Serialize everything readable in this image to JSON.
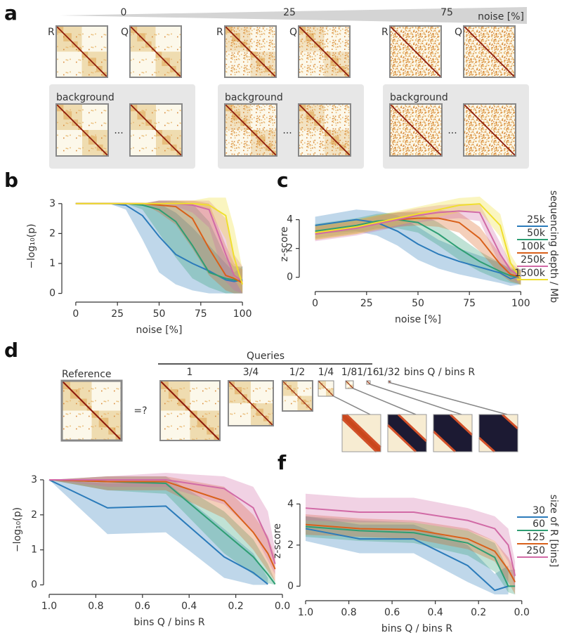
{
  "panel_a": {
    "label": "a",
    "noise_levels": [
      "0",
      "25",
      "75"
    ],
    "noise_axis_label": "noise [%]",
    "reference_label": "R",
    "query_label": "Q",
    "background_label": "background",
    "ellipsis": "..."
  },
  "panel_d": {
    "label": "d",
    "queries_title": "Queries",
    "reference_title": "Reference",
    "equals": "=?",
    "fractions": [
      "1",
      "3/4",
      "1/2",
      "1/4",
      "1/8",
      "1/16",
      "1/32"
    ],
    "fraction_axis_label": "bins Q / bins R"
  },
  "chart_data": [
    {
      "panel": "b",
      "type": "line",
      "x": [
        0,
        20,
        30,
        40,
        50,
        60,
        70,
        80,
        90,
        95,
        100
      ],
      "xlabel": "noise [%]",
      "ylabel": "−log₁₀(p)",
      "xlim": [
        -5,
        105
      ],
      "ylim": [
        -0.15,
        3.3
      ],
      "xticks": [
        0,
        25,
        50,
        75,
        100
      ],
      "yticks": [
        0,
        1,
        2,
        3
      ],
      "series": [
        {
          "color": "#2b7bba",
          "values": [
            3,
            3,
            2.95,
            2.6,
            1.9,
            1.3,
            1.0,
            0.75,
            0.45,
            0.4,
            0.45
          ],
          "lower": [
            3,
            3,
            2.8,
            1.8,
            0.7,
            0.3,
            0.1,
            0,
            0,
            0,
            0
          ],
          "upper": [
            3,
            3,
            3,
            3,
            3,
            2.7,
            2.2,
            1.6,
            1.0,
            0.7,
            0.9
          ]
        },
        {
          "color": "#2e9e73",
          "values": [
            3,
            3,
            3,
            2.95,
            2.8,
            2.4,
            1.6,
            0.7,
            0.5,
            0.45,
            0.4
          ],
          "lower": [
            3,
            3,
            3,
            2.8,
            2.0,
            1.2,
            0.5,
            0.2,
            0,
            0,
            0
          ],
          "upper": [
            3,
            3,
            3,
            3,
            3.1,
            3.1,
            3,
            2.4,
            1.2,
            0.9,
            0.9
          ]
        },
        {
          "color": "#d9601a",
          "values": [
            3,
            3,
            3,
            3,
            2.95,
            2.9,
            2.5,
            1.5,
            0.6,
            0.5,
            0.35
          ],
          "lower": [
            3,
            3,
            3,
            3,
            2.7,
            2.3,
            1.5,
            0.6,
            0.1,
            0,
            0
          ],
          "upper": [
            3,
            3,
            3,
            3,
            3.1,
            3.1,
            3.1,
            3,
            1.6,
            1.0,
            0.8
          ]
        },
        {
          "color": "#d16aa6",
          "values": [
            3,
            3,
            3,
            3,
            3,
            3,
            2.95,
            2.8,
            1.3,
            0.6,
            0.4
          ],
          "lower": [
            3,
            3,
            3,
            3,
            3,
            2.9,
            2.7,
            2.2,
            0.4,
            0.1,
            0
          ],
          "upper": [
            3,
            3,
            3,
            3,
            3.1,
            3.1,
            3.1,
            3.1,
            2.5,
            1.3,
            0.9
          ]
        },
        {
          "color": "#f0df2e",
          "values": [
            3,
            3,
            3,
            3,
            3,
            3,
            3,
            2.95,
            2.6,
            1.2,
            0.3
          ],
          "lower": [
            3,
            3,
            3,
            3,
            3,
            3,
            3,
            2.8,
            1.8,
            0.5,
            0
          ],
          "upper": [
            3,
            3,
            3,
            3,
            3,
            3.1,
            3.1,
            3.2,
            3.2,
            2.2,
            0.8
          ]
        }
      ]
    },
    {
      "panel": "c",
      "type": "line",
      "x": [
        0,
        20,
        30,
        40,
        50,
        60,
        70,
        80,
        90,
        95,
        100
      ],
      "xlabel": "noise [%]",
      "ylabel": "z-score",
      "xlim": [
        -5,
        105
      ],
      "ylim": [
        -0.7,
        5.3
      ],
      "xticks": [
        0,
        25,
        50,
        75,
        100
      ],
      "yticks": [
        0,
        2,
        4
      ],
      "legend_title": "sequencing depth / Mb",
      "series": [
        {
          "name": "25k",
          "color": "#2b7bba",
          "values": [
            3.6,
            4.0,
            3.8,
            3.2,
            2.3,
            1.6,
            1.1,
            0.7,
            0.3,
            -0.1,
            0.1
          ],
          "lower": [
            3.0,
            3.2,
            2.9,
            2.2,
            1.2,
            0.6,
            0.2,
            -0.1,
            -0.4,
            -0.6,
            -0.5
          ],
          "upper": [
            4.2,
            4.7,
            4.6,
            4.3,
            3.5,
            2.6,
            2.0,
            1.5,
            1.0,
            0.5,
            0.6
          ]
        },
        {
          "name": "50k",
          "color": "#2e9e73",
          "values": [
            3.2,
            3.6,
            3.9,
            4.0,
            3.8,
            3.0,
            2.0,
            1.1,
            0.4,
            0.1,
            0
          ],
          "lower": [
            2.7,
            3.1,
            3.4,
            3.4,
            3.1,
            2.2,
            1.2,
            0.4,
            -0.2,
            -0.4,
            -0.5
          ],
          "upper": [
            3.7,
            4.1,
            4.4,
            4.5,
            4.5,
            3.8,
            2.8,
            1.8,
            1.0,
            0.6,
            0.5
          ]
        },
        {
          "name": "100k",
          "color": "#d9601a",
          "values": [
            3.1,
            3.5,
            3.8,
            4.0,
            4.1,
            4.1,
            3.8,
            2.7,
            0.9,
            0.2,
            0
          ],
          "lower": [
            2.6,
            3.0,
            3.3,
            3.5,
            3.6,
            3.5,
            3.1,
            1.8,
            0.2,
            -0.3,
            -0.5
          ],
          "upper": [
            3.6,
            4.0,
            4.3,
            4.5,
            4.6,
            4.7,
            4.5,
            3.5,
            1.6,
            0.7,
            0.5
          ]
        },
        {
          "name": "250k",
          "color": "#d16aa6",
          "values": [
            3.0,
            3.4,
            3.7,
            4.0,
            4.3,
            4.5,
            4.6,
            4.5,
            1.6,
            0.5,
            0
          ],
          "lower": [
            2.5,
            2.9,
            3.2,
            3.5,
            3.8,
            4.0,
            4.1,
            3.9,
            0.8,
            0,
            -0.5
          ],
          "upper": [
            3.5,
            3.9,
            4.2,
            4.5,
            4.8,
            5.0,
            5.1,
            5.1,
            2.4,
            1.0,
            0.5
          ]
        },
        {
          "name": "1500k",
          "color": "#f0df2e",
          "values": [
            3.1,
            3.5,
            3.8,
            4.1,
            4.4,
            4.7,
            5.0,
            5.1,
            3.6,
            1.0,
            -0.1
          ],
          "lower": [
            2.6,
            3.0,
            3.3,
            3.6,
            3.9,
            4.2,
            4.5,
            4.6,
            2.8,
            0.4,
            -0.6
          ],
          "upper": [
            3.6,
            4.0,
            4.3,
            4.6,
            4.9,
            5.2,
            5.5,
            5.6,
            4.4,
            1.6,
            0.4
          ]
        }
      ]
    },
    {
      "panel": "e",
      "type": "line",
      "x": [
        1,
        0.75,
        0.5,
        0.25,
        0.125,
        0.0625,
        0.03125
      ],
      "xlabel": "bins Q / bins R",
      "ylabel": "−log₁₀(p)",
      "xlim": [
        1.0,
        -0.03
      ],
      "ylim": [
        -0.15,
        3.3
      ],
      "xticks": [
        {
          "value": 1,
          "label": "1.0"
        },
        0.8,
        0.6,
        0.4,
        0.2,
        {
          "value": 0,
          "label": "0.0"
        }
      ],
      "yticks": [
        0,
        1,
        2,
        3
      ],
      "series": [
        {
          "color": "#2b7bba",
          "values": [
            3,
            2.2,
            2.25,
            0.8,
            0.35,
            0.02,
            null
          ],
          "lower": [
            3,
            1.45,
            1.5,
            0.2,
            0,
            0,
            null
          ],
          "upper": [
            3,
            2.9,
            2.95,
            1.6,
            0.9,
            0.2,
            null
          ]
        },
        {
          "color": "#2e9e73",
          "values": [
            3,
            2.95,
            2.9,
            1.5,
            0.8,
            0.3,
            0.02
          ],
          "lower": [
            3,
            2.7,
            2.6,
            0.9,
            0.3,
            0.05,
            0
          ],
          "upper": [
            3,
            3.1,
            3.1,
            2.1,
            1.3,
            0.6,
            0.1
          ]
        },
        {
          "color": "#d9601a",
          "values": [
            3,
            2.95,
            2.95,
            2.4,
            1.5,
            0.9,
            0.45
          ],
          "lower": [
            3,
            2.7,
            2.7,
            1.9,
            1.0,
            0.4,
            0.1
          ],
          "upper": [
            3,
            3.1,
            3.1,
            2.8,
            2.0,
            1.4,
            0.8
          ]
        },
        {
          "color": "#d16aa6",
          "values": [
            3,
            3,
            3,
            2.75,
            2.2,
            1.3,
            0.6
          ],
          "lower": [
            3,
            2.8,
            2.8,
            2.3,
            1.5,
            0.7,
            0.3
          ],
          "upper": [
            3,
            3.1,
            3.2,
            3.1,
            2.8,
            2.1,
            1.0
          ]
        }
      ]
    },
    {
      "panel": "f",
      "type": "line",
      "x": [
        1,
        0.75,
        0.5,
        0.25,
        0.125,
        0.0625,
        0.03125
      ],
      "xlabel": "bins Q / bins R",
      "ylabel": "z-score",
      "xlim": [
        1.0,
        -0.03
      ],
      "ylim": [
        -0.5,
        4.9
      ],
      "xticks": [
        {
          "value": 1,
          "label": "1.0"
        },
        0.8,
        0.6,
        0.4,
        0.2,
        {
          "value": 0,
          "label": "0.0"
        }
      ],
      "yticks": [
        0,
        2,
        4
      ],
      "legend_title": "size of R [bins]",
      "series": [
        {
          "name": "30",
          "color": "#2b7bba",
          "values": [
            2.8,
            2.3,
            2.3,
            1.0,
            -0.2,
            0.0,
            null
          ],
          "lower": [
            2.2,
            1.6,
            1.6,
            0.2,
            -0.4,
            -0.4,
            null
          ],
          "upper": [
            3.4,
            3.0,
            3.0,
            2.0,
            0.6,
            1.0,
            null
          ]
        },
        {
          "name": "60",
          "color": "#2e9e73",
          "values": [
            2.9,
            2.7,
            2.6,
            2.1,
            1.4,
            0,
            0
          ],
          "lower": [
            2.4,
            2.2,
            2.1,
            1.5,
            0.7,
            -0.3,
            -0.4
          ],
          "upper": [
            3.4,
            3.2,
            3.1,
            2.7,
            2.1,
            0.8,
            0.8
          ]
        },
        {
          "name": "125",
          "color": "#d9601a",
          "values": [
            3.0,
            2.8,
            2.75,
            2.3,
            1.7,
            0.8,
            0.2
          ],
          "lower": [
            2.5,
            2.4,
            2.3,
            1.8,
            1.2,
            0.2,
            -0.4
          ],
          "upper": [
            3.5,
            3.3,
            3.2,
            2.8,
            2.2,
            1.4,
            0.8
          ]
        },
        {
          "name": "250",
          "color": "#d16aa6",
          "values": [
            3.8,
            3.6,
            3.6,
            3.2,
            2.8,
            2.0,
            0.5
          ],
          "lower": [
            3.2,
            3.1,
            3.1,
            2.7,
            2.2,
            1.2,
            -0.2
          ],
          "upper": [
            4.5,
            4.3,
            4.3,
            3.8,
            3.4,
            2.8,
            1.2
          ]
        }
      ]
    }
  ]
}
